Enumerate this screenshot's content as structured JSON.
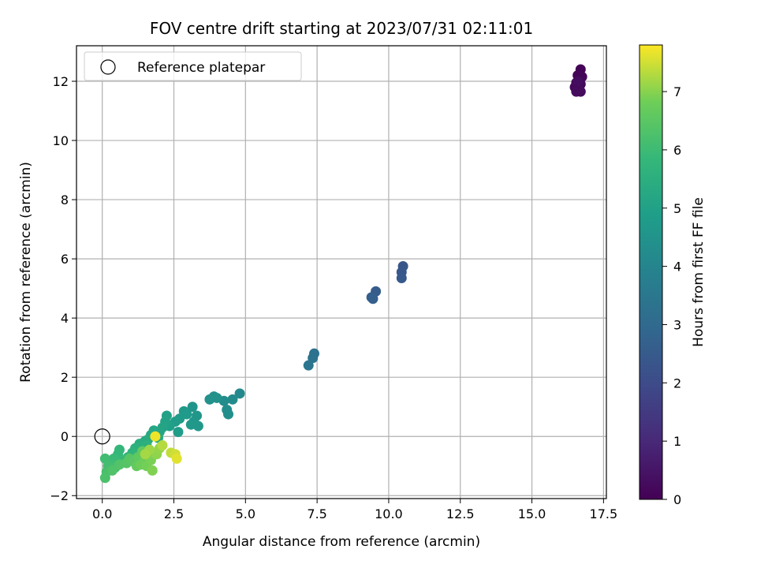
{
  "chart_data": {
    "type": "scatter",
    "title": "FOV centre drift starting at 2023/07/31 02:11:01",
    "xlabel": "Angular distance from reference (arcmin)",
    "ylabel": "Rotation from reference (arcmin)",
    "xlim": [
      -0.9,
      17.6
    ],
    "ylim": [
      -2.1,
      13.2
    ],
    "xticks": [
      0.0,
      2.5,
      5.0,
      7.5,
      10.0,
      12.5,
      15.0,
      17.5
    ],
    "xtick_labels": [
      "0.0",
      "2.5",
      "5.0",
      "7.5",
      "10.0",
      "12.5",
      "15.0",
      "17.5"
    ],
    "yticks": [
      -2,
      0,
      2,
      4,
      6,
      8,
      10,
      12
    ],
    "ytick_labels": [
      "−2",
      "0",
      "2",
      "4",
      "6",
      "8",
      "10",
      "12"
    ],
    "grid": true,
    "legend": {
      "placement": "top-left",
      "entries": [
        "Reference platepar"
      ]
    },
    "reference_point": {
      "x": 0.0,
      "y": 0.0
    },
    "colorbar": {
      "label": "Hours from first FF file",
      "colormap": "viridis",
      "range": [
        0,
        7.8
      ],
      "ticks": [
        0,
        1,
        2,
        3,
        4,
        5,
        6,
        7
      ],
      "tick_labels": [
        "0",
        "1",
        "2",
        "3",
        "4",
        "5",
        "6",
        "7"
      ]
    },
    "points": [
      {
        "x": 16.7,
        "y": 12.4,
        "c": 0.05
      },
      {
        "x": 16.6,
        "y": 12.2,
        "c": 0.1
      },
      {
        "x": 16.75,
        "y": 12.15,
        "c": 0.1
      },
      {
        "x": 16.55,
        "y": 11.95,
        "c": 0.15
      },
      {
        "x": 16.7,
        "y": 11.9,
        "c": 0.15
      },
      {
        "x": 16.5,
        "y": 11.8,
        "c": 0.2
      },
      {
        "x": 16.65,
        "y": 11.75,
        "c": 0.2
      },
      {
        "x": 16.55,
        "y": 11.65,
        "c": 0.25
      },
      {
        "x": 16.7,
        "y": 11.65,
        "c": 0.25
      },
      {
        "x": 16.6,
        "y": 12.0,
        "c": 0.3
      },
      {
        "x": 10.5,
        "y": 5.75,
        "c": 2.35
      },
      {
        "x": 10.45,
        "y": 5.55,
        "c": 2.4
      },
      {
        "x": 10.45,
        "y": 5.35,
        "c": 2.45
      },
      {
        "x": 9.55,
        "y": 4.9,
        "c": 2.55
      },
      {
        "x": 9.4,
        "y": 4.7,
        "c": 2.6
      },
      {
        "x": 9.45,
        "y": 4.65,
        "c": 2.62
      },
      {
        "x": 7.4,
        "y": 2.8,
        "c": 3.3
      },
      {
        "x": 7.35,
        "y": 2.65,
        "c": 3.35
      },
      {
        "x": 7.2,
        "y": 2.4,
        "c": 3.45
      },
      {
        "x": 4.8,
        "y": 1.45,
        "c": 4.15
      },
      {
        "x": 4.55,
        "y": 1.25,
        "c": 4.2
      },
      {
        "x": 4.25,
        "y": 1.2,
        "c": 4.25
      },
      {
        "x": 4.35,
        "y": 0.9,
        "c": 4.3
      },
      {
        "x": 4.4,
        "y": 0.75,
        "c": 4.35
      },
      {
        "x": 3.9,
        "y": 1.35,
        "c": 4.4
      },
      {
        "x": 3.75,
        "y": 1.25,
        "c": 4.45
      },
      {
        "x": 4.0,
        "y": 1.3,
        "c": 4.45
      },
      {
        "x": 3.15,
        "y": 1.0,
        "c": 4.55
      },
      {
        "x": 3.3,
        "y": 0.7,
        "c": 4.6
      },
      {
        "x": 3.2,
        "y": 0.5,
        "c": 4.62
      },
      {
        "x": 3.35,
        "y": 0.35,
        "c": 4.65
      },
      {
        "x": 3.1,
        "y": 0.4,
        "c": 4.7
      },
      {
        "x": 2.85,
        "y": 0.85,
        "c": 4.7
      },
      {
        "x": 2.95,
        "y": 0.75,
        "c": 4.75
      },
      {
        "x": 2.7,
        "y": 0.6,
        "c": 4.78
      },
      {
        "x": 2.55,
        "y": 0.5,
        "c": 4.8
      },
      {
        "x": 2.65,
        "y": 0.15,
        "c": 4.85
      },
      {
        "x": 2.35,
        "y": 0.35,
        "c": 4.9
      },
      {
        "x": 2.25,
        "y": 0.7,
        "c": 5.0
      },
      {
        "x": 2.2,
        "y": 0.5,
        "c": 5.05
      },
      {
        "x": 2.1,
        "y": 0.3,
        "c": 5.1
      },
      {
        "x": 2.0,
        "y": 0.15,
        "c": 5.15
      },
      {
        "x": 1.8,
        "y": 0.2,
        "c": 5.2
      },
      {
        "x": 1.7,
        "y": 0.05,
        "c": 5.25
      },
      {
        "x": 1.95,
        "y": -0.05,
        "c": 5.3
      },
      {
        "x": 1.6,
        "y": -0.1,
        "c": 5.35
      },
      {
        "x": 1.5,
        "y": -0.15,
        "c": 5.4
      },
      {
        "x": 1.3,
        "y": -0.25,
        "c": 5.45
      },
      {
        "x": 1.35,
        "y": -0.35,
        "c": 5.5
      },
      {
        "x": 1.55,
        "y": -0.3,
        "c": 5.55
      },
      {
        "x": 1.15,
        "y": -0.4,
        "c": 5.6
      },
      {
        "x": 1.05,
        "y": -0.55,
        "c": 5.65
      },
      {
        "x": 1.2,
        "y": -0.6,
        "c": 5.7
      },
      {
        "x": 0.9,
        "y": -0.7,
        "c": 5.75
      },
      {
        "x": 0.6,
        "y": -0.45,
        "c": 5.8
      },
      {
        "x": 0.55,
        "y": -0.6,
        "c": 5.85
      },
      {
        "x": 0.7,
        "y": -0.8,
        "c": 5.9
      },
      {
        "x": 0.4,
        "y": -0.75,
        "c": 5.95
      },
      {
        "x": 0.35,
        "y": -0.95,
        "c": 6.0
      },
      {
        "x": 0.1,
        "y": -0.75,
        "c": 6.05
      },
      {
        "x": 0.2,
        "y": -1.0,
        "c": 6.1
      },
      {
        "x": 0.45,
        "y": -1.05,
        "c": 6.15
      },
      {
        "x": 0.15,
        "y": -1.2,
        "c": 6.2
      },
      {
        "x": 0.1,
        "y": -1.4,
        "c": 6.25
      },
      {
        "x": 0.35,
        "y": -1.15,
        "c": 6.3
      },
      {
        "x": 0.6,
        "y": -0.95,
        "c": 6.35
      },
      {
        "x": 0.85,
        "y": -0.9,
        "c": 6.4
      },
      {
        "x": 0.95,
        "y": -0.75,
        "c": 6.45
      },
      {
        "x": 1.1,
        "y": -0.85,
        "c": 6.5
      },
      {
        "x": 1.25,
        "y": -0.7,
        "c": 6.55
      },
      {
        "x": 1.4,
        "y": -0.5,
        "c": 6.6
      },
      {
        "x": 1.2,
        "y": -1.0,
        "c": 6.65
      },
      {
        "x": 1.45,
        "y": -0.85,
        "c": 6.7
      },
      {
        "x": 1.6,
        "y": -0.65,
        "c": 6.75
      },
      {
        "x": 1.35,
        "y": -0.95,
        "c": 6.8
      },
      {
        "x": 1.55,
        "y": -1.0,
        "c": 6.85
      },
      {
        "x": 1.7,
        "y": -0.8,
        "c": 6.9
      },
      {
        "x": 1.75,
        "y": -1.15,
        "c": 6.95
      },
      {
        "x": 1.8,
        "y": -0.55,
        "c": 7.0
      },
      {
        "x": 1.9,
        "y": -0.6,
        "c": 7.05
      },
      {
        "x": 2.0,
        "y": -0.4,
        "c": 7.1
      },
      {
        "x": 1.65,
        "y": -0.45,
        "c": 7.15
      },
      {
        "x": 1.5,
        "y": -0.6,
        "c": 7.2
      },
      {
        "x": 2.1,
        "y": -0.3,
        "c": 7.3
      },
      {
        "x": 2.4,
        "y": -0.55,
        "c": 7.4
      },
      {
        "x": 2.55,
        "y": -0.6,
        "c": 7.5
      },
      {
        "x": 2.6,
        "y": -0.75,
        "c": 7.6
      },
      {
        "x": 1.85,
        "y": 0.0,
        "c": 7.7
      }
    ]
  }
}
